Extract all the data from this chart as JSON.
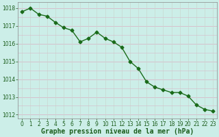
{
  "x": [
    0,
    1,
    2,
    3,
    4,
    5,
    6,
    7,
    8,
    9,
    10,
    11,
    12,
    13,
    14,
    15,
    16,
    17,
    18,
    19,
    20,
    21,
    22,
    23
  ],
  "y": [
    1017.8,
    1018.0,
    1017.65,
    1017.55,
    1017.2,
    1016.9,
    1016.75,
    1016.1,
    1016.3,
    1016.65,
    1016.3,
    1016.1,
    1015.8,
    1015.0,
    1014.6,
    1013.85,
    1013.55,
    1013.4,
    1013.25,
    1013.25,
    1013.05,
    1012.55,
    1012.3,
    1012.2
  ],
  "line_color": "#1a6b1a",
  "marker": "D",
  "marker_size": 2.5,
  "line_width": 1.0,
  "xlabel": "Graphe pression niveau de la mer (hPa)",
  "xlabel_fontsize": 7,
  "background_color": "#cceee8",
  "grid_h_color": "#d8b8c8",
  "grid_v_color": "#c8d8d0",
  "ylim": [
    1011.8,
    1018.35
  ],
  "xlim": [
    -0.5,
    23.5
  ],
  "yticks": [
    1012,
    1013,
    1014,
    1015,
    1016,
    1017,
    1018
  ],
  "xticks": [
    0,
    1,
    2,
    3,
    4,
    5,
    6,
    7,
    8,
    9,
    10,
    11,
    12,
    13,
    14,
    15,
    16,
    17,
    18,
    19,
    20,
    21,
    22,
    23
  ],
  "tick_fontsize": 5.5,
  "tick_color": "#1a5c1a",
  "spine_color": "#888888",
  "xlabel_color": "#1a5c1a"
}
